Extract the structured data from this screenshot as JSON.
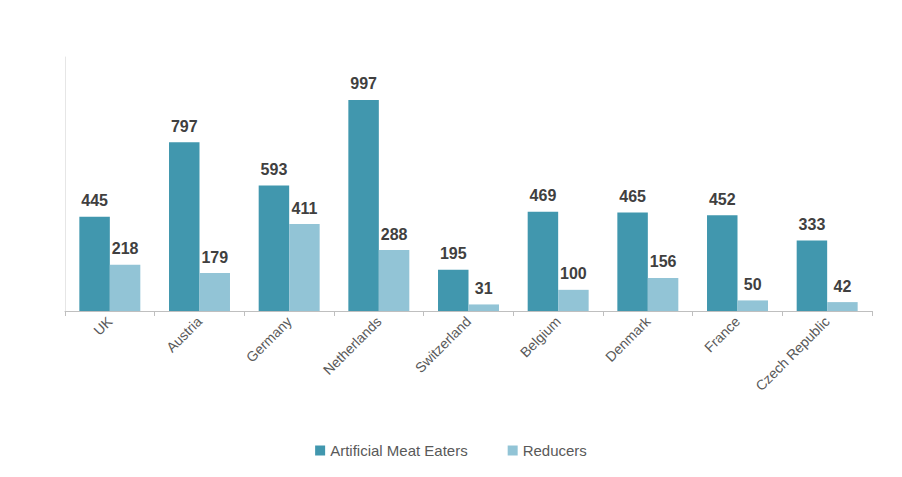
{
  "chart_data": {
    "type": "bar",
    "categories": [
      "UK",
      "Austria",
      "Germany",
      "Netherlands",
      "Switzerland",
      "Belgium",
      "Denmark",
      "France",
      "Czech Republic"
    ],
    "series": [
      {
        "name": "Artificial Meat Eaters",
        "color": "#4197ae",
        "values": [
          445,
          797,
          593,
          997,
          195,
          469,
          465,
          452,
          333
        ]
      },
      {
        "name": "Reducers",
        "color": "#92c4d6",
        "values": [
          218,
          179,
          411,
          288,
          31,
          100,
          156,
          50,
          42
        ]
      }
    ],
    "ylim": [
      0,
      1200
    ],
    "grid": false,
    "legend": "bottom",
    "data_labels": true,
    "tick_labels": "x"
  }
}
